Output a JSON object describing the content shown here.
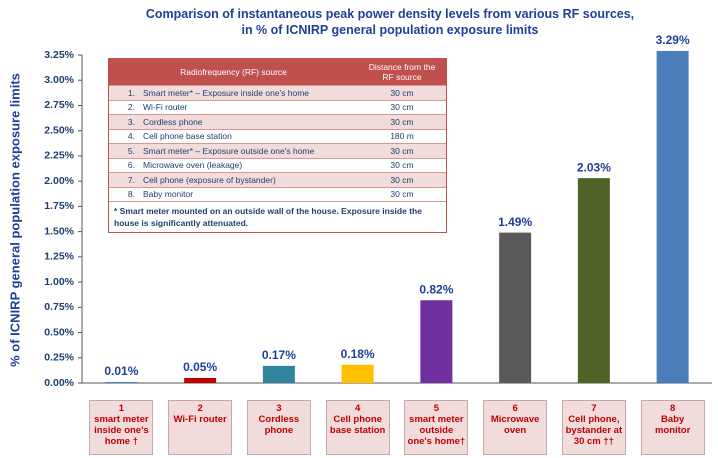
{
  "chart_data": {
    "type": "bar",
    "title": "Comparison of instantaneous peak power density levels from various RF sources,\nin % of ICNIRP general population exposure limits",
    "y_label": "% of ICNIRP general population exposure limits",
    "categories": [
      "1\nsmart meter\ninside one's\nhome †",
      "2\nWi-Fi router",
      "3\nCordless\nphone",
      "4\nCell phone\nbase station",
      "5\nsmart meter\noutside\none's home†",
      "6\nMicrowave\noven",
      "7\nCell phone,\nbystander at\n30 cm ††",
      "8\nBaby\nmonitor"
    ],
    "values": [
      0.01,
      0.05,
      0.17,
      0.18,
      0.82,
      1.49,
      2.03,
      3.29
    ],
    "value_labels": [
      "0.01%",
      "0.05%",
      "0.17%",
      "0.18%",
      "0.82%",
      "1.49%",
      "2.03%",
      "3.29%"
    ],
    "colors": [
      "#4f81bd",
      "#c00000",
      "#31859c",
      "#ffc000",
      "#7030a0",
      "#595959",
      "#4f6228",
      "#4a7ebb"
    ],
    "ylim": [
      0,
      3.25
    ],
    "yticks": [
      {
        "value": 0,
        "label": "0.00%"
      },
      {
        "value": 0.25,
        "label": "0.25%"
      },
      {
        "value": 0.5,
        "label": "0.50%"
      },
      {
        "value": 0.75,
        "label": "0.75%"
      },
      {
        "value": 1,
        "label": "1.00%"
      },
      {
        "value": 1.25,
        "label": "1.25%"
      },
      {
        "value": 1.5,
        "label": "1.50%"
      },
      {
        "value": 1.75,
        "label": "1.75%"
      },
      {
        "value": 2,
        "label": "2.00%"
      },
      {
        "value": 2.25,
        "label": "2.25%"
      },
      {
        "value": 2.5,
        "label": "2.50%"
      },
      {
        "value": 2.75,
        "label": "2.75%"
      },
      {
        "value": 3,
        "label": "3.00%"
      },
      {
        "value": 3.25,
        "label": "3.25%"
      }
    ],
    "grid": false,
    "table": {
      "header": [
        "Radiofrequency (RF) source",
        "Distance from the RF source"
      ],
      "rows": [
        [
          "1.",
          "Smart meter* – Exposure inside one's home",
          "30 cm"
        ],
        [
          "2.",
          "Wi-Fi router",
          "30 cm"
        ],
        [
          "3.",
          "Cordless phone",
          "30 cm"
        ],
        [
          "4.",
          "Cell phone base station",
          "180 m"
        ],
        [
          "5.",
          "Smart meter* – Exposure outside one's home",
          "30 cm"
        ],
        [
          "6.",
          "Microwave oven (leakage)",
          "30 cm"
        ],
        [
          "7.",
          "Cell phone (exposure of bystander)",
          "30 cm"
        ],
        [
          "8.",
          "Baby monitor",
          "30 cm"
        ]
      ],
      "note": "* Smart meter mounted on an outside wall of the house. Exposure inside the house is significantly attenuated."
    }
  }
}
